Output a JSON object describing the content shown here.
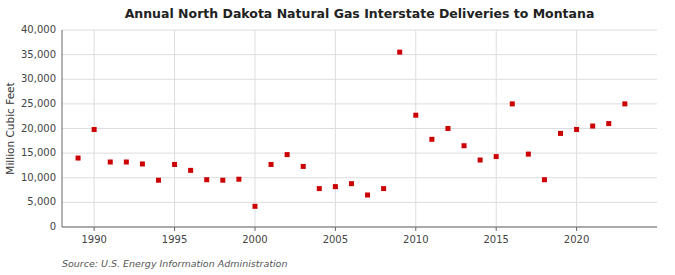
{
  "chart_data": {
    "type": "scatter",
    "title": "Annual North Dakota Natural Gas Interstate Deliveries to Montana",
    "ylabel": "Million Cubic Feet",
    "source": "Source: U.S. Energy Information Administration",
    "x": [
      1989,
      1990,
      1991,
      1992,
      1993,
      1994,
      1995,
      1996,
      1997,
      1998,
      1999,
      2000,
      2001,
      2002,
      2003,
      2004,
      2005,
      2006,
      2007,
      2008,
      2009,
      2010,
      2011,
      2012,
      2013,
      2014,
      2015,
      2016,
      2017,
      2018,
      2019,
      2020,
      2021,
      2022,
      2023
    ],
    "values": [
      14000,
      19800,
      13200,
      13200,
      12800,
      9500,
      12700,
      11500,
      9600,
      9500,
      9700,
      4200,
      12700,
      14700,
      12300,
      7800,
      8200,
      8800,
      6500,
      7800,
      35500,
      22700,
      17800,
      20000,
      16500,
      13600,
      14300,
      25000,
      14800,
      9600,
      19000,
      19800,
      20500,
      21000,
      25000
    ],
    "color": "#cc0000",
    "marker": "square",
    "xlim": [
      1988,
      2025
    ],
    "ylim": [
      0,
      40000
    ],
    "xticks": [
      1990,
      1995,
      2000,
      2005,
      2010,
      2015,
      2020
    ],
    "yticks": [
      0,
      {
        "value": 5000,
        "label": "5,000"
      },
      {
        "value": 10000,
        "label": "10,000"
      },
      {
        "value": 15000,
        "label": "15,000"
      },
      {
        "value": 20000,
        "label": "20,000"
      },
      {
        "value": 25000,
        "label": "25,000"
      },
      {
        "value": 30000,
        "label": "30,000"
      },
      {
        "value": 35000,
        "label": "35,000"
      },
      {
        "value": 40000,
        "label": "40,000"
      }
    ],
    "grid": true
  }
}
